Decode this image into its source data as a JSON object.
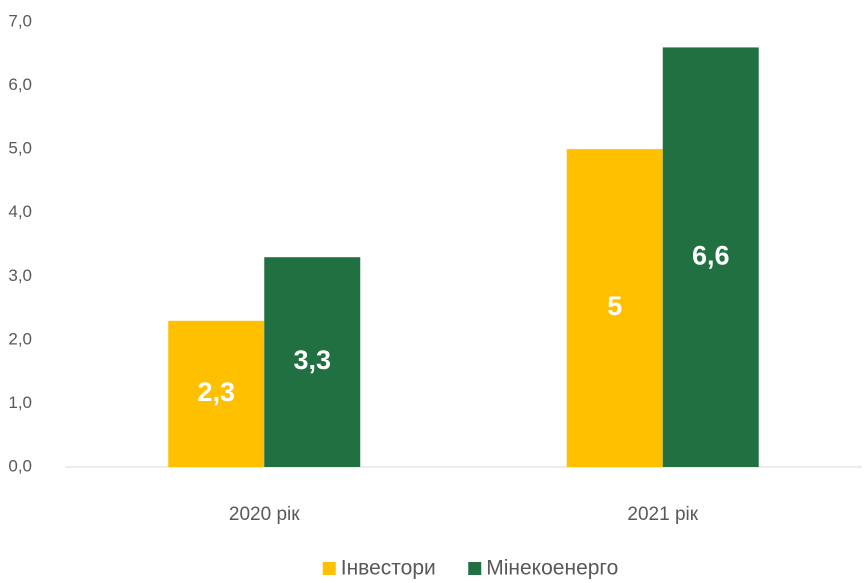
{
  "chart_data": {
    "type": "bar",
    "categories": [
      "2020 рік",
      "2021 рік"
    ],
    "series": [
      {
        "name": "Інвестори",
        "color": "#FFC000",
        "values": [
          2.3,
          5
        ],
        "value_labels": [
          "2,3",
          "5"
        ]
      },
      {
        "name": "Мінекоенерго",
        "color": "#217042",
        "values": [
          3.3,
          6.6
        ],
        "value_labels": [
          "3,3",
          "6,6"
        ]
      }
    ],
    "ylim": [
      0,
      7
    ],
    "yticks": [
      {
        "value": 0,
        "label": "0,0"
      },
      {
        "value": 1,
        "label": "1,0"
      },
      {
        "value": 2,
        "label": "2,0"
      },
      {
        "value": 3,
        "label": "3,0"
      },
      {
        "value": 4,
        "label": "4,0"
      },
      {
        "value": 5,
        "label": "5,0"
      },
      {
        "value": 6,
        "label": "6,0"
      },
      {
        "value": 7,
        "label": "7,0"
      }
    ],
    "grid": false,
    "legend": "bottom"
  }
}
